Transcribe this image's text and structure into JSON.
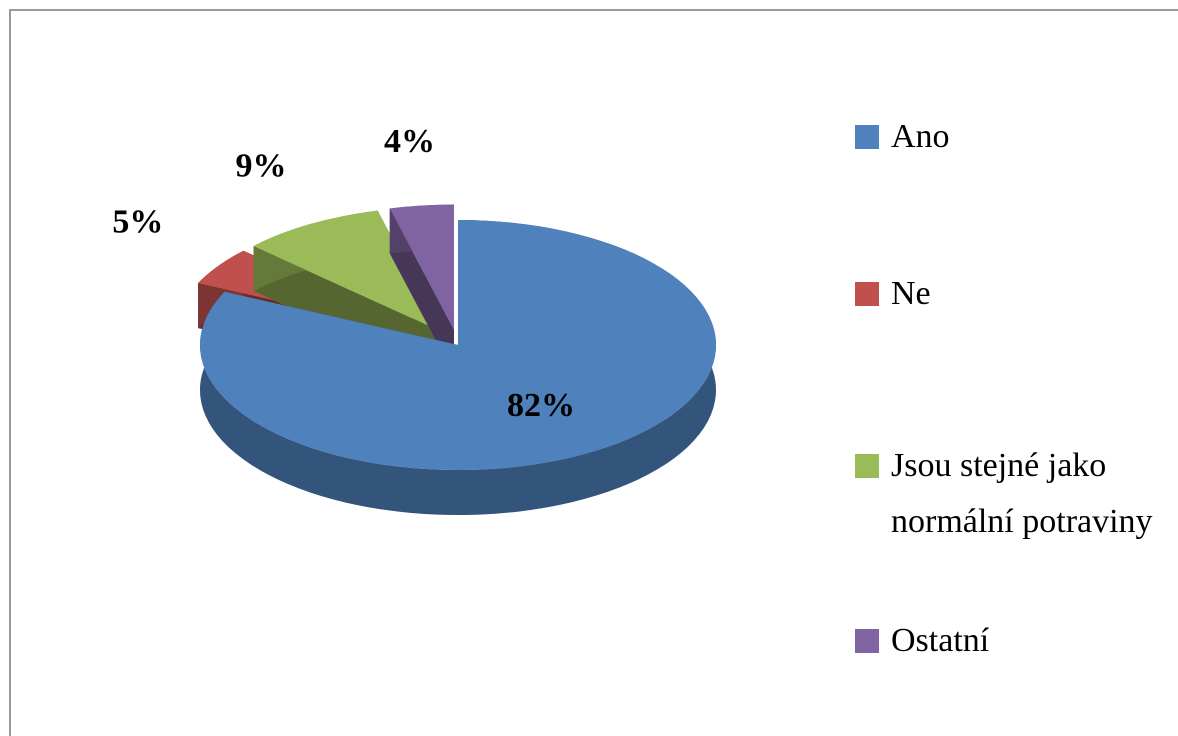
{
  "chart_data": {
    "type": "pie",
    "categories": [
      "Ano",
      "Ne",
      "Jsou stejné jako normální potraviny",
      "Ostatní"
    ],
    "values": [
      82,
      5,
      9,
      4
    ],
    "value_labels": [
      "82%",
      "5%",
      "9%",
      "4%"
    ],
    "colors": [
      "#4f81bd",
      "#c0504d",
      "#9bbb59",
      "#8064a2"
    ],
    "legend": "right"
  }
}
